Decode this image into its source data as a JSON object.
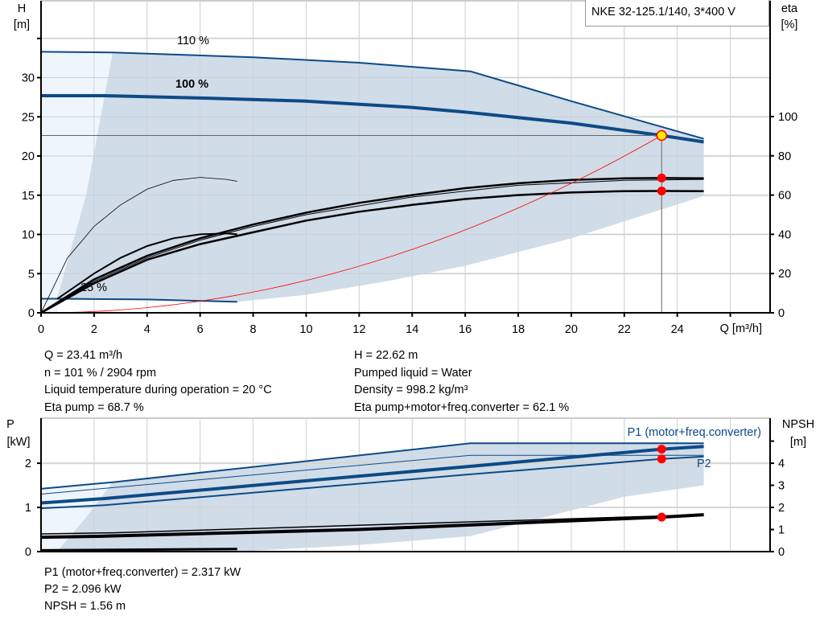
{
  "title": "NKE 32-125.1/140, 3*400 V",
  "colors": {
    "curve_blue": "#0d4a86",
    "region": "#d0dce8",
    "region_light": "#eef5fc",
    "operating_point": "#ffee00",
    "marker": "#ff0000",
    "system_curve": "#ff0000",
    "grid": "#dcdcdc"
  },
  "info_top": {
    "left": [
      "Q = 23.41 m³/h",
      "n = 101 % / 2904 rpm",
      "Liquid temperature during operation = 20 °C",
      "Eta pump = 68.7 %"
    ],
    "right": [
      "H = 22.62 m",
      "Pumped liquid = Water",
      "Density = 998.2 kg/m³",
      "Eta pump+motor+freq.converter = 62.1 %"
    ]
  },
  "info_bottom": [
    "P1 (motor+freq.converter) = 2.317 kW",
    "P2 = 2.096 kW",
    "NPSH = 1.56 m"
  ],
  "chart_data": [
    {
      "type": "line",
      "xlabel": "Q [m³/h]",
      "ylabel_left": [
        "H",
        "[m]"
      ],
      "ylabel_right": [
        "eta",
        "[%]"
      ],
      "x_ticks": [
        0,
        2,
        4,
        6,
        8,
        10,
        12,
        14,
        16,
        18,
        20,
        22,
        24
      ],
      "y_ticks": [
        0,
        5,
        10,
        15,
        20,
        25,
        30
      ],
      "y_right_ticks": [
        0,
        20,
        40,
        60,
        80,
        100
      ],
      "xlim": [
        0,
        27.5
      ],
      "ylim": [
        0,
        39.8
      ],
      "y_right_lim": [
        0,
        159
      ],
      "grid": true,
      "curve_labels": [
        "110 %",
        "100 %",
        "25 %"
      ],
      "head_curves": [
        {
          "speed": "110 %",
          "points": [
            [
              0,
              33.3
            ],
            [
              2.7,
              33.2
            ],
            [
              8,
              32.6
            ],
            [
              12,
              31.9
            ],
            [
              16.2,
              30.8
            ],
            [
              20,
              27.0
            ],
            [
              25,
              22.2
            ]
          ]
        },
        {
          "speed": "100 %",
          "points": [
            [
              0,
              27.7
            ],
            [
              2.4,
              27.7
            ],
            [
              6,
              27.4
            ],
            [
              10,
              27.0
            ],
            [
              14,
              26.2
            ],
            [
              16,
              25.6
            ],
            [
              20,
              24.2
            ],
            [
              23.41,
              22.62
            ],
            [
              25,
              21.8
            ]
          ]
        },
        {
          "speed": "25 %",
          "points": [
            [
              0,
              1.8
            ],
            [
              0.6,
              1.8
            ],
            [
              4,
              1.7
            ],
            [
              7.4,
              1.4
            ]
          ]
        }
      ],
      "efficiency_curves": [
        {
          "name": "Eta pump",
          "points": [
            [
              0,
              0
            ],
            [
              2,
              17
            ],
            [
              4,
              29
            ],
            [
              6,
              38
            ],
            [
              8,
              45
            ],
            [
              10,
              51
            ],
            [
              12,
              56
            ],
            [
              14,
              60
            ],
            [
              16,
              63.5
            ],
            [
              18,
              66
            ],
            [
              20,
              67.7
            ],
            [
              22,
              68.5
            ],
            [
              23.41,
              68.7
            ],
            [
              25,
              68.5
            ]
          ]
        },
        {
          "name": "Eta pump+motor+freq.converter",
          "points": [
            [
              0,
              0
            ],
            [
              2,
              15
            ],
            [
              4,
              27
            ],
            [
              6,
              35
            ],
            [
              8,
              41
            ],
            [
              10,
              47
            ],
            [
              12,
              51.5
            ],
            [
              14,
              55
            ],
            [
              16,
              58
            ],
            [
              18,
              60
            ],
            [
              20,
              61.3
            ],
            [
              22,
              62
            ],
            [
              23.41,
              62.1
            ],
            [
              25,
              62
            ]
          ]
        },
        {
          "points": [
            [
              0,
              0
            ],
            [
              1,
              28
            ],
            [
              2,
              44
            ],
            [
              3,
              55
            ],
            [
              4,
              63
            ],
            [
              5,
              67.5
            ],
            [
              6,
              69
            ],
            [
              7,
              68
            ],
            [
              7.4,
              67
            ]
          ]
        },
        {
          "points": [
            [
              0.6,
              7
            ],
            [
              2,
              20
            ],
            [
              3,
              28
            ],
            [
              4,
              34
            ],
            [
              5,
              38
            ],
            [
              6,
              40
            ],
            [
              7,
              40.5
            ],
            [
              7.4,
              40
            ]
          ]
        },
        {
          "points": [
            [
              0,
              0
            ],
            [
              2,
              16
            ],
            [
              4,
              28
            ],
            [
              6,
              37
            ],
            [
              8,
              44
            ],
            [
              10,
              50
            ],
            [
              14,
              59
            ],
            [
              18,
              65
            ],
            [
              22,
              67.5
            ],
            [
              25,
              68
            ]
          ]
        }
      ],
      "operating_region": {
        "bottom": [
          [
            7.4,
            1.4
          ],
          [
            10,
            2.3
          ],
          [
            13,
            4
          ],
          [
            16,
            6
          ],
          [
            20,
            9.5
          ],
          [
            25,
            14.9
          ]
        ]
      },
      "operating_point": {
        "Q": 23.41,
        "H": 22.62,
        "eta_pump": 68.7,
        "eta_total": 62.1
      }
    },
    {
      "type": "line",
      "ylabel_left": [
        "P",
        "[kW]"
      ],
      "ylabel_right": [
        "NPSH",
        "[m]"
      ],
      "y_ticks": [
        0,
        1,
        2
      ],
      "y_right_ticks": [
        0,
        1,
        2,
        3,
        4,
        5
      ],
      "y_right_tick_labels": [
        "0",
        "1",
        "2",
        "3",
        "4",
        ""
      ],
      "xlim": [
        0,
        27.5
      ],
      "ylim": [
        0,
        3.02
      ],
      "y_right_lim": [
        0,
        6.04
      ],
      "series_labels": [
        "P1 (motor+freq.converter)",
        "P2"
      ],
      "power_curves": [
        {
          "name": "P1 (motor+freq.converter)",
          "speed": "110 %",
          "points": [
            [
              0,
              1.42
            ],
            [
              2.7,
              1.57
            ],
            [
              16.2,
              2.45
            ],
            [
              25,
              2.45
            ]
          ]
        },
        {
          "speed": "limit",
          "points": [
            [
              0,
              1.3
            ],
            [
              16.2,
              2.18
            ],
            [
              25,
              2.18
            ]
          ]
        },
        {
          "name": "P1 (motor+freq.converter)",
          "speed": "100 %",
          "points": [
            [
              0,
              1.1
            ],
            [
              2.4,
              1.2
            ],
            [
              16,
              1.92
            ],
            [
              23.41,
              2.317
            ],
            [
              25,
              2.38
            ]
          ]
        },
        {
          "name": "P2",
          "speed": "100 %",
          "points": [
            [
              0,
              0.98
            ],
            [
              2.4,
              1.05
            ],
            [
              16,
              1.74
            ],
            [
              23.41,
              2.096
            ],
            [
              25,
              2.15
            ]
          ]
        },
        {
          "speed": "25 %",
          "points": [
            [
              0,
              0.03
            ],
            [
              7.4,
              0.06
            ]
          ]
        }
      ],
      "npsh_curves": [
        {
          "points": [
            [
              0,
              0.8
            ],
            [
              2.7,
              0.85
            ],
            [
              25,
              1.67
            ]
          ]
        },
        {
          "points": [
            [
              0,
              0.65
            ],
            [
              2.4,
              0.7
            ],
            [
              12,
              1.0
            ],
            [
              23.41,
              1.56
            ],
            [
              25,
              1.67
            ]
          ]
        }
      ],
      "operating_region": {
        "bottom": [
          [
            7.4,
            0
          ],
          [
            12,
            0.15
          ],
          [
            16.2,
            0.35
          ],
          [
            22,
            1.24
          ],
          [
            25,
            1.5
          ]
        ]
      },
      "operating_point": {
        "Q": 23.41,
        "P1": 2.317,
        "P2": 2.096,
        "NPSH": 1.56
      }
    }
  ]
}
